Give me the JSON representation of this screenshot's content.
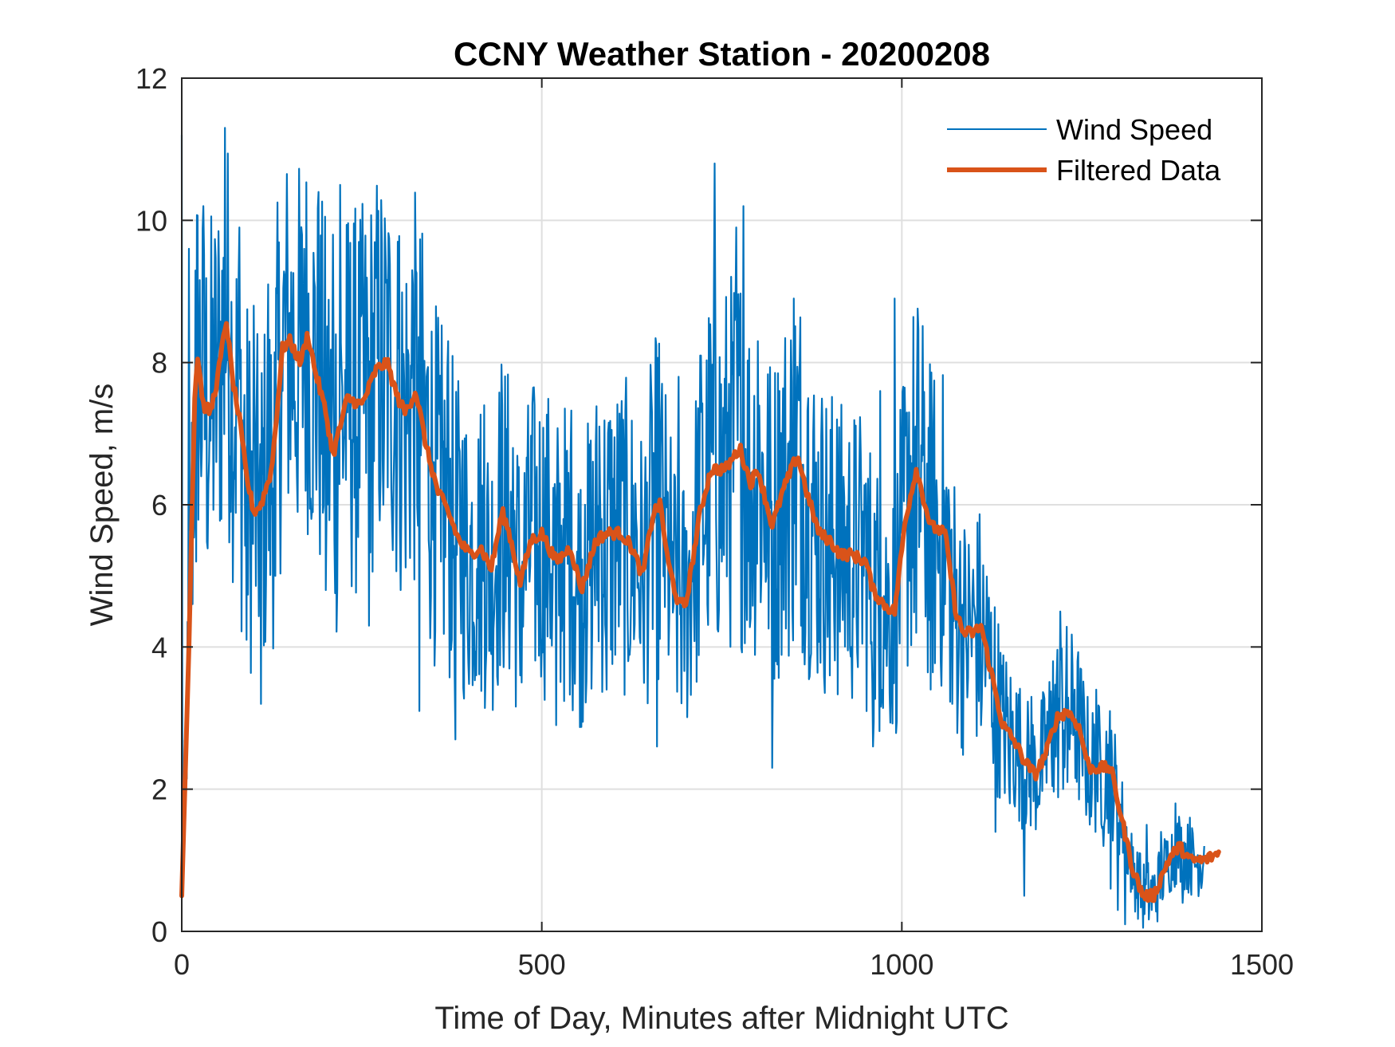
{
  "chart_data": {
    "type": "line",
    "title": "CCNY Weather Station - 20200208",
    "xlabel": "Time of Day, Minutes after Midnight UTC",
    "ylabel": "Wind Speed, m/s",
    "xlim": [
      0,
      1500
    ],
    "ylim": [
      0,
      12
    ],
    "xticks": [
      0,
      500,
      1000,
      1500
    ],
    "xtick_labels": [
      "0",
      "500",
      "1000",
      "1500"
    ],
    "yticks": [
      0,
      2,
      4,
      6,
      8,
      10,
      12
    ],
    "ytick_labels": [
      "0",
      "2",
      "4",
      "6",
      "8",
      "10",
      "12"
    ],
    "grid": true,
    "legend_position": "top-right",
    "series": [
      {
        "name": "Wind Speed",
        "color": "#0072BD",
        "x_step": 10,
        "values": [
          11.2,
          9.6,
          5.2,
          10.2,
          6.9,
          8.3,
          11.3,
          7.5,
          9.9,
          4.1,
          8.8,
          3.2,
          9.1,
          5.0,
          7.6,
          8.7,
          6.4,
          9.6,
          5.8,
          10.4,
          4.8,
          9.8,
          10.5,
          7.3,
          6.1,
          8.7,
          4.3,
          9.2,
          6.0,
          8.1,
          9.7,
          6.2,
          9.3,
          3.1,
          7.8,
          6.6,
          5.2,
          8.3,
          2.7,
          6.9,
          4.4,
          5.1,
          7.4,
          3.9,
          6.3,
          4.5,
          6.8,
          3.6,
          6.5,
          7.4,
          4.1,
          6.1,
          2.9,
          5.8,
          6.7,
          4.6,
          6.0,
          4.2,
          7.1,
          3.4,
          5.5,
          6.9,
          3.8,
          6.3,
          4.9,
          6.6,
          2.6,
          6.1,
          5.0,
          7.8,
          4.7,
          5.9,
          8.1,
          4.6,
          10.8,
          5.2,
          7.7,
          9.9,
          10.2,
          4.4,
          8.3,
          6.0,
          2.3,
          7.6,
          5.8,
          8.9,
          4.3,
          7.5,
          5.3,
          6.9,
          3.6,
          7.2,
          6.1,
          4.0,
          5.5,
          6.3,
          2.6,
          7.6,
          4.4,
          8.9,
          5.6,
          7.3,
          4.2,
          6.7,
          3.4,
          5.1,
          4.6,
          3.2,
          4.9,
          3.9,
          4.6,
          2.9,
          3.7,
          1.4,
          3.1,
          1.8,
          2.7,
          0.5,
          3.3,
          1.9,
          2.9,
          3.8,
          4.5,
          2.1,
          3.4,
          2.6,
          1.9,
          3.4,
          1.2,
          0.6,
          0.3,
          0.1,
          0.6,
          1.1,
          1.5,
          0.7,
          1.4,
          0.9,
          1.8,
          0.4,
          1.6,
          0.9,
          1.2
        ]
      },
      {
        "name": "Filtered Data",
        "color": "#D95319",
        "x": [
          0,
          10,
          18,
          22,
          30,
          40,
          50,
          62,
          70,
          80,
          90,
          100,
          110,
          125,
          140,
          150,
          165,
          175,
          185,
          200,
          210,
          230,
          250,
          270,
          285,
          300,
          310,
          325,
          340,
          355,
          370,
          385,
          400,
          415,
          430,
          445,
          455,
          470,
          485,
          500,
          520,
          540,
          555,
          575,
          590,
          610,
          625,
          640,
          655,
          665,
          675,
          690,
          700,
          720,
          735,
          755,
          775,
          790,
          800,
          820,
          835,
          855,
          870,
          885,
          900,
          915,
          930,
          950,
          960,
          975,
          990,
          1005,
          1020,
          1030,
          1040,
          1060,
          1075,
          1085,
          1100,
          1110,
          1125,
          1140,
          1155,
          1170,
          1185,
          1200,
          1215,
          1230,
          1245,
          1260,
          1280,
          1290,
          1305,
          1320,
          1335,
          1350,
          1370,
          1385,
          1400,
          1420,
          1440
        ],
        "values": [
          0.5,
          4.0,
          7.5,
          8.1,
          7.4,
          7.3,
          7.8,
          8.6,
          7.8,
          7.2,
          6.4,
          5.9,
          6.0,
          6.5,
          8.2,
          8.3,
          8.0,
          8.4,
          7.9,
          7.3,
          6.7,
          7.5,
          7.4,
          7.9,
          8.0,
          7.5,
          7.3,
          7.6,
          6.8,
          6.2,
          5.9,
          5.5,
          5.3,
          5.4,
          5.1,
          5.9,
          5.6,
          4.9,
          5.5,
          5.6,
          5.2,
          5.4,
          4.8,
          5.5,
          5.6,
          5.6,
          5.4,
          5.0,
          5.9,
          6.0,
          5.2,
          4.6,
          4.6,
          5.9,
          6.5,
          6.5,
          6.8,
          6.3,
          6.5,
          5.7,
          6.2,
          6.7,
          6.1,
          5.6,
          5.5,
          5.3,
          5.3,
          5.2,
          4.8,
          4.6,
          4.5,
          5.8,
          6.5,
          6.1,
          5.7,
          5.6,
          4.5,
          4.2,
          4.2,
          4.3,
          3.6,
          2.9,
          2.7,
          2.4,
          2.2,
          2.5,
          3.0,
          3.1,
          2.9,
          2.3,
          2.3,
          2.3,
          1.6,
          0.9,
          0.5,
          0.5,
          1.0,
          1.2,
          1.0,
          1.0,
          1.1
        ]
      }
    ]
  }
}
